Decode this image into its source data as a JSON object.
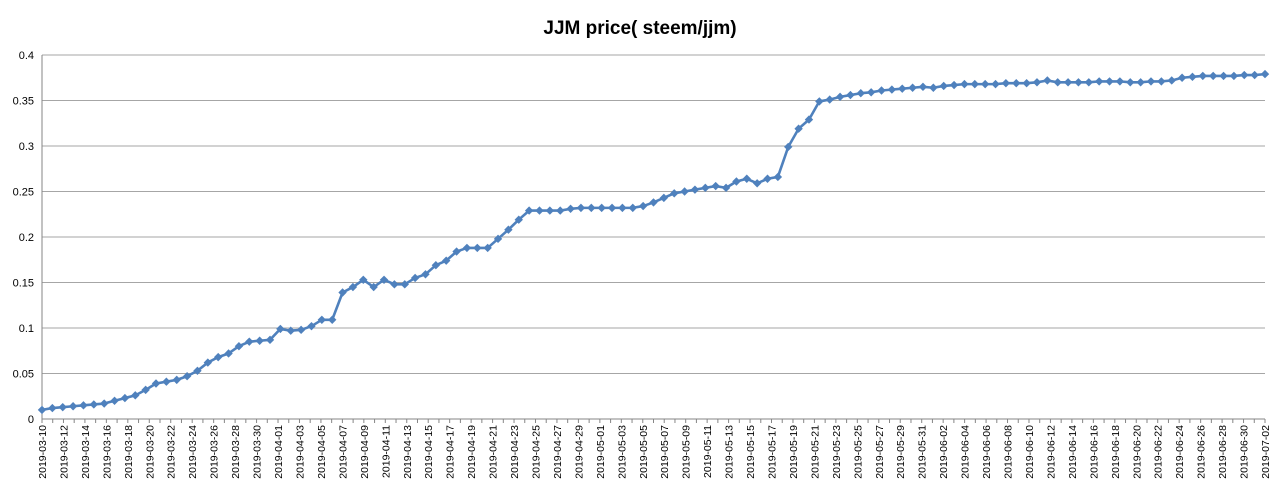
{
  "chart_data": {
    "type": "line",
    "title": "JJM price( steem/jjm)",
    "xlabel": "",
    "ylabel": "",
    "ylim": [
      0,
      0.4
    ],
    "yticks": [
      "0",
      "0.05",
      "0.1",
      "0.15",
      "0.2",
      "0.25",
      "0.3",
      "0.35",
      "0.4"
    ],
    "grid": true,
    "legend": "none",
    "series_color": "#4F81BD",
    "x_start": "2019-03-10",
    "x_end": "2019-07-02",
    "x_tick_labels": [
      "2019-03-10",
      "2019-03-12",
      "2019-03-14",
      "2019-03-16",
      "2019-03-18",
      "2019-03-20",
      "2019-03-22",
      "2019-03-24",
      "2019-03-26",
      "2019-03-28",
      "2019-03-30",
      "2019-04-01",
      "2019-04-03",
      "2019-04-05",
      "2019-04-07",
      "2019-04-09",
      "2019-04-11",
      "2019-04-13",
      "2019-04-15",
      "2019-04-17",
      "2019-04-19",
      "2019-04-21",
      "2019-04-23",
      "2019-04-25",
      "2019-04-27",
      "2019-04-29",
      "2019-05-01",
      "2019-05-03",
      "2019-05-05",
      "2019-05-07",
      "2019-05-09",
      "2019-05-11",
      "2019-05-13",
      "2019-05-15",
      "2019-05-17",
      "2019-05-19",
      "2019-05-21",
      "2019-05-23",
      "2019-05-25",
      "2019-05-27",
      "2019-05-29",
      "2019-05-31",
      "2019-06-02",
      "2019-06-04",
      "2019-06-06",
      "2019-06-08",
      "2019-06-10",
      "2019-06-12",
      "2019-06-14",
      "2019-06-16",
      "2019-06-18",
      "2019-06-20",
      "2019-06-22",
      "2019-06-24",
      "2019-06-26",
      "2019-06-28",
      "2019-06-30",
      "2019-07-02"
    ],
    "series": [
      {
        "values": [
          0.01,
          0.012,
          0.013,
          0.014,
          0.015,
          0.016,
          0.017,
          0.02,
          0.023,
          0.026,
          0.032,
          0.039,
          0.041,
          0.043,
          0.047,
          0.053,
          0.062,
          0.068,
          0.072,
          0.08,
          0.085,
          0.086,
          0.087,
          0.099,
          0.097,
          0.098,
          0.102,
          0.109,
          0.109,
          0.139,
          0.145,
          0.153,
          0.145,
          0.153,
          0.148,
          0.148,
          0.155,
          0.159,
          0.169,
          0.174,
          0.184,
          0.188,
          0.188,
          0.188,
          0.198,
          0.208,
          0.219,
          0.229,
          0.229,
          0.229,
          0.229,
          0.231,
          0.232,
          0.232,
          0.232,
          0.232,
          0.232,
          0.232,
          0.234,
          0.238,
          0.243,
          0.248,
          0.25,
          0.252,
          0.254,
          0.256,
          0.254,
          0.261,
          0.264,
          0.259,
          0.264,
          0.266,
          0.299,
          0.319,
          0.329,
          0.349,
          0.351,
          0.354,
          0.356,
          0.358,
          0.359,
          0.361,
          0.362,
          0.363,
          0.364,
          0.365,
          0.364,
          0.366,
          0.367,
          0.368,
          0.368,
          0.368,
          0.368,
          0.369,
          0.369,
          0.369,
          0.37,
          0.372,
          0.37,
          0.37,
          0.37,
          0.37,
          0.371,
          0.371,
          0.371,
          0.37,
          0.37,
          0.371,
          0.371,
          0.372,
          0.375,
          0.376,
          0.377,
          0.377,
          0.377,
          0.377,
          0.378,
          0.378,
          0.379
        ]
      }
    ]
  }
}
